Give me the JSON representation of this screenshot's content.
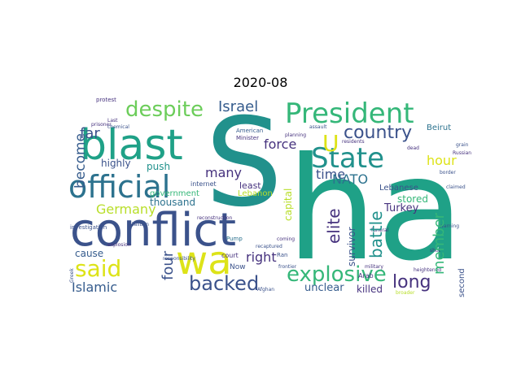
{
  "title": "2020-08",
  "palette": {
    "purple": "#46327e",
    "indigo": "#3b528b",
    "slate": "#365c8d",
    "blue": "#2c728e",
    "teal": "#21918c",
    "sea": "#1fa187",
    "green": "#35b779",
    "lime": "#6ccd5a",
    "yellow": "#b8de29",
    "bright": "#dde318"
  },
  "words": {
    "sha_s": "S",
    "sha_ha": "ha",
    "conflict": "conflict",
    "blast": "blast",
    "president": "President",
    "state": "State",
    "official": "official",
    "wa": "wa",
    "explosive": "explosive",
    "said": "said",
    "backed": "backed",
    "despite": "despite",
    "country": "country",
    "germany": "Germany",
    "islamic": "Islamic",
    "long": "long",
    "israel": "Israel",
    "force": "force",
    "far": "far",
    "become": "become",
    "elite": "elite",
    "battle": "battle",
    "member": "member",
    "hour": "hour",
    "time": "time",
    "nato": "NATO",
    "many": "many",
    "right": "right",
    "four": "four",
    "unclear": "unclear",
    "killed": "killed",
    "turkey": "Turkey",
    "push": "push",
    "highly": "highly",
    "thousand": "thousand",
    "government": "government",
    "capital": "capital",
    "survivor": "survivor",
    "stored": "stored",
    "lebanese": "Lebanese",
    "beirut": "Beirut",
    "lebanon": "Lebanon",
    "least": "least",
    "cause": "cause",
    "second": "second",
    "u": "U",
    "arab": "Arab",
    "internet": "internet",
    "court": "court",
    "now": "Now",
    "american": "American",
    "minister": "Minister",
    "investigation": "investigation",
    "protest": "protest",
    "pump": "Pump",
    "ran": "Ran",
    "coming": "coming",
    "frontier": "frontier",
    "military": "military",
    "broader": "broader",
    "greek": "Greek",
    "explosion": "explosion",
    "taliban": "Taliban",
    "prisoner": "prisoner",
    "last": "Last",
    "chemical": "chemical",
    "planning": "planning",
    "afghan": "Afghan",
    "heightened": "heightened",
    "responsibility": "responsibility",
    "reconstruction": "reconstruction",
    "grain": "grain",
    "russian": "Russian",
    "recaptured": "recaptured",
    "residents": "residents",
    "warning": "warning",
    "funeral": "funeral",
    "assault": "assault",
    "shot": "shot",
    "claimed": "claimed",
    "dead": "dead",
    "border": "border"
  }
}
